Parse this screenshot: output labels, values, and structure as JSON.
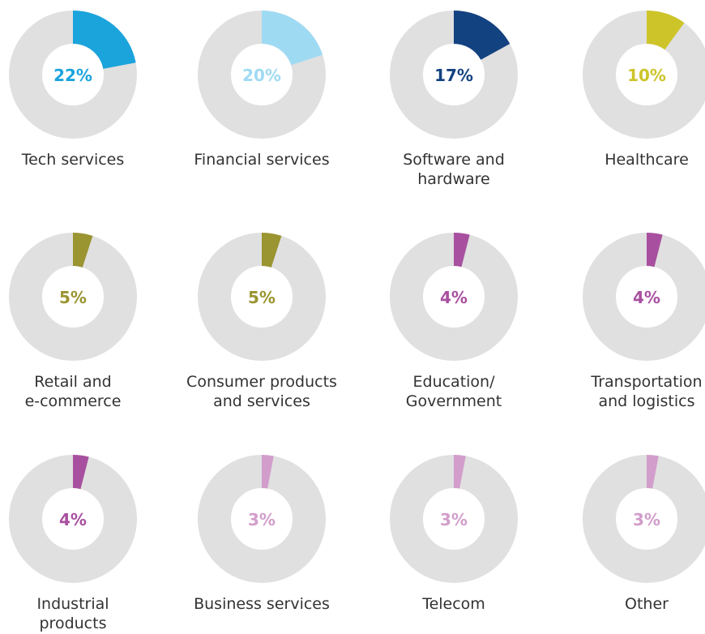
{
  "chart_data": [
    {
      "type": "donut",
      "title": "Tech services",
      "values": [
        22
      ],
      "value_labels": [
        "22%"
      ],
      "color": "#1ba3dc"
    },
    {
      "type": "donut",
      "title": "Financial services",
      "values": [
        20
      ],
      "value_labels": [
        "20%"
      ],
      "color": "#9fdaf3"
    },
    {
      "type": "donut",
      "title": "Software and\nhardware",
      "values": [
        17
      ],
      "value_labels": [
        "17%"
      ],
      "color": "#134281"
    },
    {
      "type": "donut",
      "title": "Healthcare",
      "values": [
        10
      ],
      "value_labels": [
        "10%"
      ],
      "color": "#cdc42a"
    },
    {
      "type": "donut",
      "title": "Retail and\ne-commerce",
      "values": [
        5
      ],
      "value_labels": [
        "5%"
      ],
      "color": "#9a9431"
    },
    {
      "type": "donut",
      "title": "Consumer products\nand services",
      "values": [
        5
      ],
      "value_labels": [
        "5%"
      ],
      "color": "#9a9431"
    },
    {
      "type": "donut",
      "title": "Education/\nGovernment",
      "values": [
        4
      ],
      "value_labels": [
        "4%"
      ],
      "color": "#a8509f"
    },
    {
      "type": "donut",
      "title": "Transportation\nand logistics",
      "values": [
        4
      ],
      "value_labels": [
        "4%"
      ],
      "color": "#a8509f"
    },
    {
      "type": "donut",
      "title": "Industrial\nproducts",
      "values": [
        4
      ],
      "value_labels": [
        "4%"
      ],
      "color": "#a8509f"
    },
    {
      "type": "donut",
      "title": "Business services",
      "values": [
        3
      ],
      "value_labels": [
        "3%"
      ],
      "color": "#d29dcb"
    },
    {
      "type": "donut",
      "title": "Telecom",
      "values": [
        3
      ],
      "value_labels": [
        "3%"
      ],
      "color": "#d29dcb"
    },
    {
      "type": "donut",
      "title": "Other",
      "values": [
        3
      ],
      "value_labels": [
        "3%"
      ],
      "color": "#d29dcb"
    }
  ]
}
